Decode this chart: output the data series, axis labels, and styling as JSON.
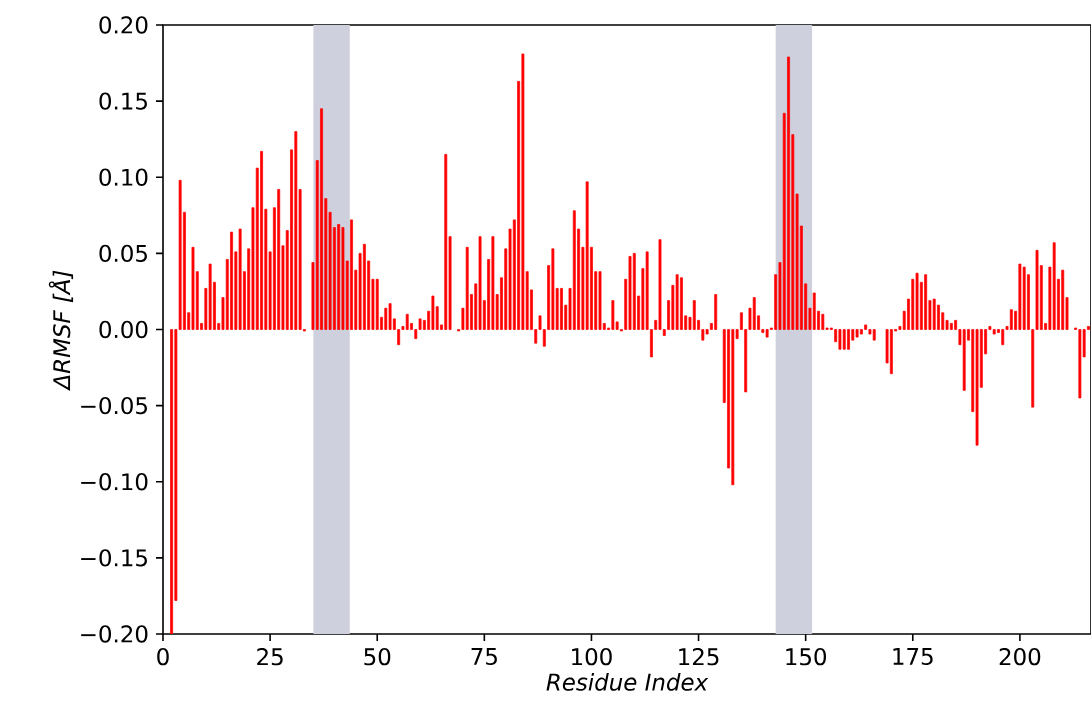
{
  "chart_data": {
    "type": "bar",
    "xlabel": "Residue Index",
    "ylabel": "ΔRMSF [Å]",
    "x": [
      2,
      3,
      4,
      5,
      6,
      7,
      8,
      9,
      10,
      11,
      12,
      13,
      14,
      15,
      16,
      17,
      18,
      19,
      20,
      21,
      22,
      23,
      24,
      25,
      26,
      27,
      28,
      29,
      30,
      31,
      32,
      33,
      34,
      35,
      36,
      37,
      38,
      39,
      40,
      41,
      42,
      43,
      44,
      45,
      46,
      47,
      48,
      49,
      50,
      51,
      52,
      53,
      54,
      55,
      56,
      57,
      58,
      59,
      60,
      61,
      62,
      63,
      64,
      65,
      66,
      67,
      68,
      69,
      70,
      71,
      72,
      73,
      74,
      75,
      76,
      77,
      78,
      79,
      80,
      81,
      82,
      83,
      84,
      85,
      86,
      87,
      88,
      89,
      90,
      91,
      92,
      93,
      94,
      95,
      96,
      97,
      98,
      99,
      100,
      101,
      102,
      103,
      104,
      105,
      106,
      107,
      108,
      109,
      110,
      111,
      112,
      113,
      114,
      115,
      116,
      117,
      118,
      119,
      120,
      121,
      122,
      123,
      124,
      125,
      126,
      127,
      128,
      129,
      130,
      131,
      132,
      133,
      134,
      135,
      136,
      137,
      138,
      139,
      140,
      141,
      142,
      143,
      144,
      145,
      146,
      147,
      148,
      149,
      150,
      151,
      152,
      153,
      154,
      155,
      156,
      157,
      158,
      159,
      160,
      161,
      162,
      163,
      164,
      165,
      166,
      167,
      168,
      169,
      170,
      171,
      172,
      173,
      174,
      175,
      176,
      177,
      178,
      179,
      180,
      181,
      182,
      183,
      184,
      185,
      186,
      187,
      188,
      189,
      190,
      191,
      192,
      193,
      194,
      195,
      196,
      197,
      198,
      199,
      200,
      201,
      202,
      203,
      204,
      205,
      206,
      207,
      208,
      209,
      210,
      211,
      212,
      213,
      214,
      215,
      216
    ],
    "values": [
      -0.2,
      -0.178,
      0.098,
      0.077,
      0.011,
      0.054,
      0.038,
      0.004,
      0.027,
      0.043,
      0.031,
      0.004,
      0.021,
      0.046,
      0.064,
      0.051,
      0.066,
      0.038,
      0.053,
      0.08,
      0.106,
      0.117,
      0.079,
      0.051,
      0.08,
      0.092,
      0.055,
      0.065,
      0.118,
      0.13,
      0.092,
      -0.001,
      null,
      0.044,
      0.111,
      0.145,
      0.086,
      0.077,
      0.067,
      0.069,
      0.067,
      0.045,
      0.072,
      0.039,
      0.05,
      0.056,
      0.045,
      0.033,
      0.033,
      0.008,
      0.014,
      0.017,
      0.007,
      -0.01,
      0.002,
      0.01,
      0.004,
      -0.006,
      0.007,
      0.006,
      0.012,
      0.022,
      0.015,
      0.003,
      0.115,
      0.061,
      null,
      -0.001,
      0.014,
      0.054,
      0.023,
      0.03,
      0.061,
      0.019,
      0.046,
      0.061,
      0.023,
      0.034,
      0.053,
      0.066,
      0.072,
      0.163,
      0.181,
      0.038,
      0.026,
      -0.009,
      0.009,
      -0.011,
      0.042,
      0.053,
      0.027,
      0.027,
      0.016,
      0.027,
      0.078,
      0.066,
      0.054,
      0.097,
      0.054,
      0.038,
      0.038,
      0.004,
      0.001,
      0.019,
      0.005,
      -0.001,
      0.033,
      0.048,
      0.05,
      0.022,
      0.04,
      0.051,
      -0.018,
      0.006,
      0.059,
      -0.004,
      0.019,
      0.029,
      0.036,
      0.034,
      0.009,
      0.008,
      0.019,
      0.006,
      -0.007,
      -0.003,
      0.004,
      0.023,
      null,
      -0.048,
      -0.091,
      -0.102,
      -0.006,
      0.011,
      -0.041,
      0.014,
      0.021,
      0.009,
      -0.002,
      -0.005,
      0.001,
      0.036,
      0.044,
      0.142,
      0.179,
      0.128,
      0.089,
      0.068,
      0.03,
      0.014,
      0.024,
      0.012,
      0.01,
      0.001,
      0.001,
      -0.008,
      -0.013,
      -0.013,
      -0.013,
      -0.007,
      -0.005,
      -0.003,
      0.003,
      -0.003,
      -0.007,
      null,
      null,
      -0.022,
      -0.029,
      -0.001,
      0.002,
      0.012,
      0.02,
      0.033,
      0.037,
      0.031,
      0.036,
      0.019,
      0.02,
      0.016,
      0.011,
      0.006,
      0.004,
      0.006,
      -0.01,
      -0.04,
      -0.007,
      -0.054,
      -0.076,
      -0.038,
      -0.016,
      0.002,
      -0.003,
      -0.002,
      -0.01,
      0.002,
      0.013,
      0.012,
      0.043,
      0.041,
      0.036,
      -0.051,
      0.052,
      0.042,
      0.004,
      0.041,
      0.057,
      0.033,
      0.039,
      0.021,
      null,
      0.001,
      -0.045,
      -0.018,
      0.002
    ],
    "color": "#ff0000",
    "xlim": [
      0,
      216.6
    ],
    "xticks": [
      0,
      25,
      50,
      75,
      100,
      125,
      150,
      175,
      200
    ],
    "ylim": [
      -0.2,
      0.2
    ],
    "yticks": [
      {
        "value": -0.2,
        "label": "−0.20"
      },
      {
        "value": -0.15,
        "label": "−0.15"
      },
      {
        "value": -0.1,
        "label": "−0.10"
      },
      {
        "value": -0.05,
        "label": "−0.05"
      },
      {
        "value": 0,
        "label": "0.00"
      },
      {
        "value": 0.05,
        "label": "0.05"
      },
      {
        "value": 0.1,
        "label": "0.10"
      },
      {
        "value": 0.15,
        "label": "0.15"
      },
      {
        "value": 0.2,
        "label": "0.20"
      }
    ],
    "bands": [
      {
        "axis": "x",
        "from": 35.1,
        "to": 43.6,
        "color": "#cfd0de"
      },
      {
        "axis": "x",
        "from": 143.0,
        "to": 151.5,
        "color": "#cfd0de"
      }
    ]
  }
}
